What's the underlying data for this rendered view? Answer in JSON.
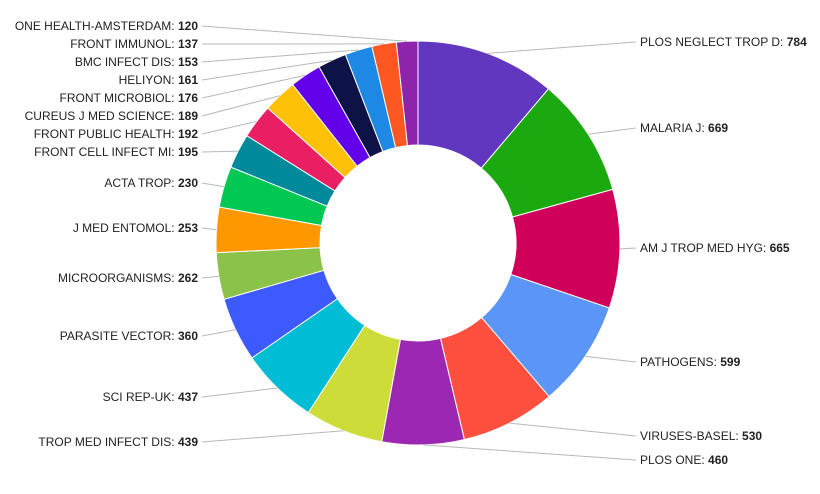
{
  "chart_data": {
    "type": "pie",
    "variant": "donut",
    "legend": "none",
    "slices": [
      {
        "label": "PLOS NEGLECT TROP D",
        "value": 784,
        "color": "#6237c0"
      },
      {
        "label": "MALARIA J",
        "value": 669,
        "color": "#1aaa10"
      },
      {
        "label": "AM J TROP MED HYG",
        "value": 665,
        "color": "#d0005a"
      },
      {
        "label": "PATHOGENS",
        "value": 599,
        "color": "#5b95f5"
      },
      {
        "label": "VIRUSES-BASEL",
        "value": 530,
        "color": "#ff4f3f"
      },
      {
        "label": "PLOS ONE",
        "value": 460,
        "color": "#9c27b0"
      },
      {
        "label": "TROP MED INFECT DIS",
        "value": 439,
        "color": "#cddc39"
      },
      {
        "label": "SCI REP-UK",
        "value": 437,
        "color": "#00bcd4"
      },
      {
        "label": "PARASITE VECTOR",
        "value": 360,
        "color": "#3d5afe"
      },
      {
        "label": "MICROORGANISMS",
        "value": 262,
        "color": "#8bc34a"
      },
      {
        "label": "J MED ENTOMOL",
        "value": 253,
        "color": "#ff9800"
      },
      {
        "label": "ACTA TROP",
        "value": 230,
        "color": "#00c853"
      },
      {
        "label": "FRONT CELL INFECT MI",
        "value": 195,
        "color": "#00899a"
      },
      {
        "label": "FRONT PUBLIC HEALTH",
        "value": 192,
        "color": "#e91e63"
      },
      {
        "label": "CUREUS J MED SCIENCE",
        "value": 189,
        "color": "#ffc107"
      },
      {
        "label": "FRONT MICROBIOL",
        "value": 176,
        "color": "#6200ea"
      },
      {
        "label": "HELIYON",
        "value": 161,
        "color": "#0d1346"
      },
      {
        "label": "BMC INFECT DIS",
        "value": 153,
        "color": "#1e88e5"
      },
      {
        "label": "FRONT IMMUNOL",
        "value": 137,
        "color": "#ff5722"
      },
      {
        "label": "ONE HEALTH-AMSTERDAM",
        "value": 120,
        "color": "#8e24aa"
      }
    ]
  }
}
